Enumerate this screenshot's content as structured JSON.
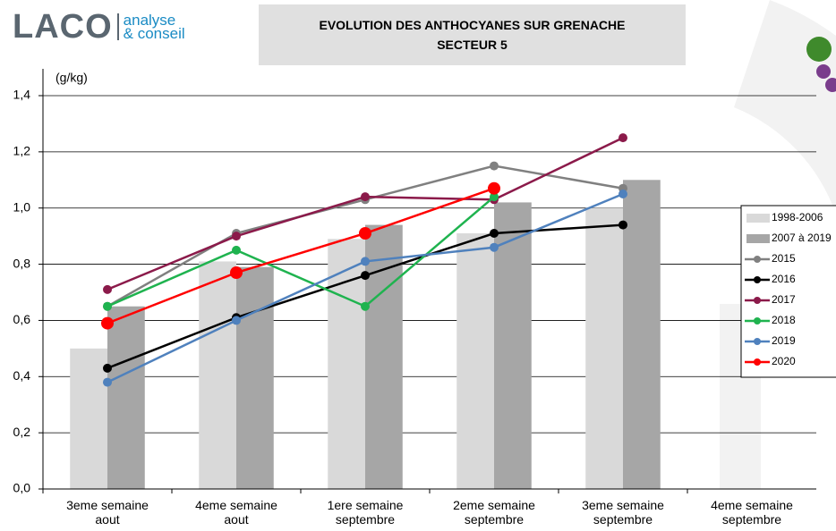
{
  "logo": {
    "brand": "LACO",
    "line1": "analyse",
    "line2": "& conseil"
  },
  "chart_data": {
    "type": "bar-line",
    "title": "EVOLUTION DES ANTHOCYANES SUR GRENACHE",
    "subtitle": "SECTEUR 5",
    "y_label": "(g/kg)",
    "categories": [
      "3eme semaine aout",
      "4eme semaine aout",
      "1ere semaine septembre",
      "2eme semaine septembre",
      "3eme semaine septembre",
      "4eme semaine septembre"
    ],
    "bar_series": [
      {
        "name": "1998-2006",
        "color": "#d9d9d9",
        "values": [
          0.5,
          0.81,
          0.89,
          0.91,
          1.0,
          null
        ]
      },
      {
        "name": "2007 à 2019",
        "color": "#a6a6a6",
        "values": [
          0.65,
          0.79,
          0.94,
          1.02,
          1.1,
          null
        ]
      }
    ],
    "series": [
      {
        "name": "2015",
        "color": "#808080",
        "values": [
          0.65,
          0.91,
          1.03,
          1.15,
          1.07,
          null
        ]
      },
      {
        "name": "2016",
        "color": "#000000",
        "values": [
          0.43,
          0.61,
          0.76,
          0.91,
          0.94,
          null
        ]
      },
      {
        "name": "2017",
        "color": "#8b1a4a",
        "values": [
          0.71,
          0.9,
          1.04,
          1.03,
          1.25,
          null
        ]
      },
      {
        "name": "2018",
        "color": "#1fb34f",
        "values": [
          0.65,
          0.85,
          0.65,
          1.04,
          null,
          null
        ]
      },
      {
        "name": "2019",
        "color": "#4f81bd",
        "values": [
          0.38,
          0.6,
          0.81,
          0.86,
          1.05,
          null
        ]
      },
      {
        "name": "2020",
        "color": "#ff0000",
        "values": [
          0.59,
          0.77,
          0.91,
          1.07,
          null,
          null
        ]
      }
    ],
    "ylim": [
      0,
      1.4
    ],
    "yticks": [
      {
        "value": 0,
        "label": "0,0"
      },
      {
        "value": 0.2,
        "label": "0,2"
      },
      {
        "value": 0.4,
        "label": "0,4"
      },
      {
        "value": 0.6,
        "label": "0,6"
      },
      {
        "value": 0.8,
        "label": "0,8"
      },
      {
        "value": 1.0,
        "label": "1,0"
      },
      {
        "value": 1.2,
        "label": "1,2"
      },
      {
        "value": 1.4,
        "label": "1,4"
      }
    ],
    "grid": true,
    "legend": "right"
  }
}
